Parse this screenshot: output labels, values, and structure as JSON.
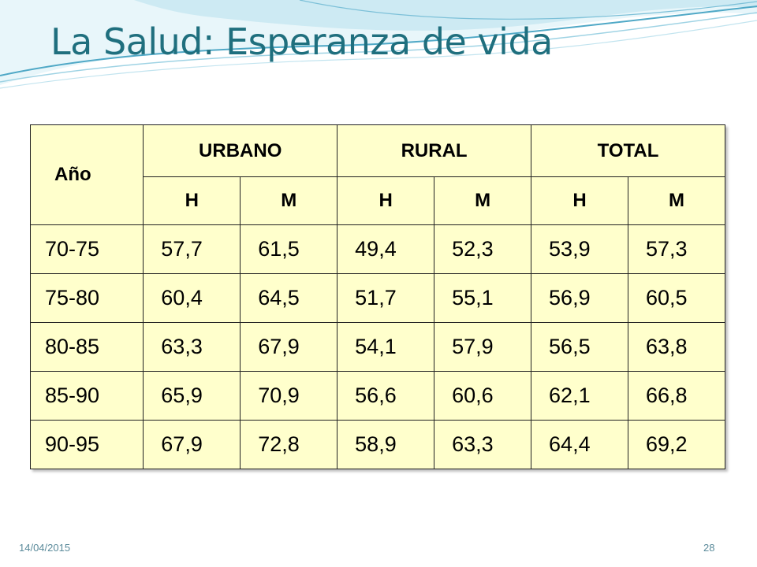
{
  "slide": {
    "title": "La Salud: Esperanza de vida",
    "footer_date": "14/04/2015",
    "page_number": "28"
  },
  "table": {
    "year_header": "Año",
    "groups": [
      "URBANO",
      "RURAL",
      "TOTAL"
    ],
    "subheaders": [
      "H",
      "M",
      "H",
      "M",
      "H",
      "M"
    ],
    "rows": [
      {
        "year": "70-75",
        "values": [
          "57,7",
          "61,5",
          "49,4",
          "52,3",
          "53,9",
          "57,3"
        ]
      },
      {
        "year": "75-80",
        "values": [
          "60,4",
          "64,5",
          "51,7",
          "55,1",
          "56,9",
          "60,5"
        ]
      },
      {
        "year": "80-85",
        "values": [
          "63,3",
          "67,9",
          "54,1",
          "57,9",
          "56,5",
          "63,8"
        ]
      },
      {
        "year": "85-90",
        "values": [
          "65,9",
          "70,9",
          "56,6",
          "60,6",
          "62,1",
          "66,8"
        ]
      },
      {
        "year": "90-95",
        "values": [
          "67,9",
          "72,8",
          "58,9",
          "63,3",
          "64,4",
          "69,2"
        ]
      }
    ]
  },
  "colors": {
    "title": "#1f6f7e",
    "table_fill": "#ffffcc",
    "wave_light": "#d6eef5",
    "wave_mid": "#9fd3e4",
    "wave_dark": "#4fa8c6"
  }
}
